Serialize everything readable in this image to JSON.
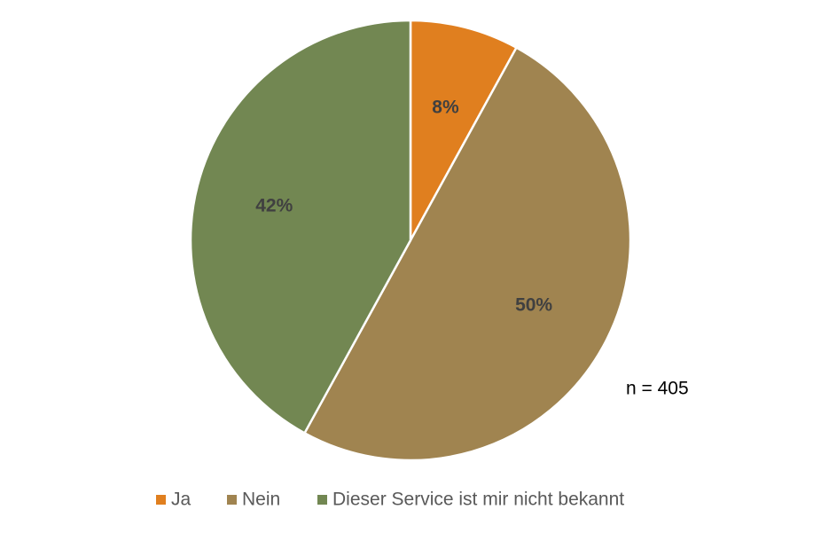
{
  "chart_data": {
    "type": "pie",
    "categories": [
      "Ja",
      "Nein",
      "Dieser Service ist mir nicht bekannt"
    ],
    "values": [
      8,
      50,
      42
    ],
    "value_labels": [
      "8%",
      "50%",
      "42%"
    ],
    "colors": [
      "#e07f1f",
      "#a08450",
      "#728752"
    ],
    "annotation": "n = 405",
    "legend": "bottom"
  }
}
